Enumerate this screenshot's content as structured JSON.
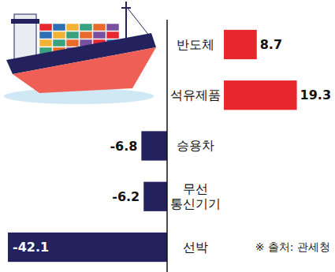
{
  "chart_data": {
    "type": "bar",
    "orientation": "horizontal",
    "categories": [
      "반도체",
      "석유제품",
      "승용차",
      "무선 통신기기",
      "선박"
    ],
    "values": [
      8.7,
      19.3,
      -6.8,
      -6.2,
      -42.1
    ],
    "colors": [
      "#e8262d",
      "#e8262d",
      "#23225e",
      "#23225e",
      "#23225e"
    ],
    "xlim": [
      -42.1,
      19.3
    ],
    "data_labels": true,
    "tick_labels": "y",
    "annotations": [
      "※ 출처: 관세청"
    ]
  }
}
